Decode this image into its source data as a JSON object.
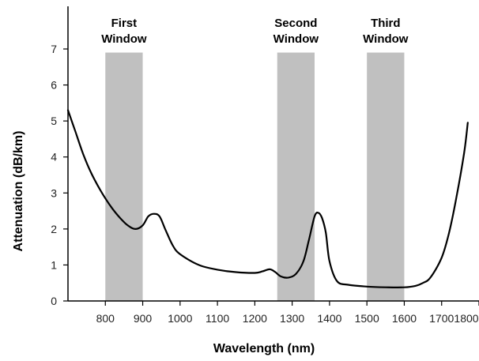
{
  "chart_data": {
    "type": "line",
    "title": "",
    "xlabel": "Wavelength (nm)",
    "ylabel": "Attenuation (dB/km)",
    "xlim": [
      700,
      1800
    ],
    "ylim": [
      0,
      8
    ],
    "xticks": [
      800,
      900,
      1000,
      1100,
      1200,
      1300,
      1400,
      1500,
      1600,
      1700,
      1800
    ],
    "yticks": [
      0,
      1,
      2,
      3,
      4,
      5,
      6,
      7
    ],
    "grid": false,
    "legend": "none",
    "windows": [
      {
        "label_line1": "First",
        "label_line2": "Window",
        "x_start": 800,
        "x_end": 900,
        "y_top": 6.9
      },
      {
        "label_line1": "Second",
        "label_line2": "Window",
        "x_start": 1260,
        "x_end": 1360,
        "y_top": 6.9
      },
      {
        "label_line1": "Third",
        "label_line2": "Window",
        "x_start": 1500,
        "x_end": 1600,
        "y_top": 6.9
      }
    ],
    "series": [
      {
        "name": "",
        "x": [
          700,
          720,
          740,
          760,
          780,
          800,
          820,
          840,
          860,
          880,
          900,
          915,
          930,
          945,
          960,
          980,
          1000,
          1050,
          1100,
          1150,
          1200,
          1220,
          1240,
          1255,
          1270,
          1290,
          1310,
          1330,
          1345,
          1360,
          1370,
          1380,
          1390,
          1400,
          1420,
          1450,
          1500,
          1550,
          1600,
          1630,
          1650,
          1670,
          1700,
          1720,
          1740,
          1760,
          1770
        ],
        "y": [
          5.3,
          4.7,
          4.1,
          3.6,
          3.2,
          2.85,
          2.55,
          2.3,
          2.1,
          2.0,
          2.1,
          2.35,
          2.42,
          2.35,
          2.0,
          1.55,
          1.3,
          1.0,
          0.87,
          0.8,
          0.78,
          0.82,
          0.88,
          0.8,
          0.68,
          0.65,
          0.75,
          1.1,
          1.7,
          2.35,
          2.45,
          2.3,
          1.9,
          1.1,
          0.55,
          0.45,
          0.4,
          0.38,
          0.38,
          0.42,
          0.5,
          0.65,
          1.2,
          1.9,
          2.9,
          4.1,
          4.95
        ]
      }
    ],
    "colors": {
      "line": "#000000",
      "band": "#c0c0c0",
      "axis": "#000000"
    }
  }
}
